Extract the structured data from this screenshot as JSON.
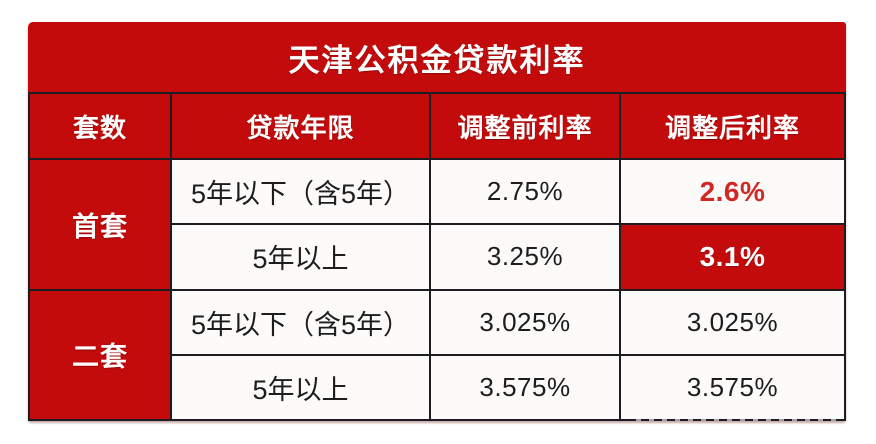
{
  "title": "天津公积金贷款利率",
  "table": {
    "headers": {
      "units": "套数",
      "term": "贷款年限",
      "before": "调整前利率",
      "after": "调整后利率"
    },
    "groups": [
      {
        "label": "首套"
      },
      {
        "label": "二套"
      }
    ],
    "rows": [
      {
        "group": "首套",
        "term": "5年以下（含5年）",
        "before": "2.75%",
        "after": "2.6%"
      },
      {
        "group": "首套",
        "term": "5年以上",
        "before": "3.25%",
        "after": "3.1%"
      },
      {
        "group": "二套",
        "term": "5年以下（含5年）",
        "before": "3.025%",
        "after": "3.025%"
      },
      {
        "group": "二套",
        "term": "5年以上",
        "before": "3.575%",
        "after": "3.575%"
      }
    ]
  },
  "colors": {
    "panel_red": "#c30b0b",
    "highlight_red": "#d22823",
    "grid_black": "#1c1c22",
    "cell_white": "#fcfbfa"
  },
  "chart_data": {
    "type": "table",
    "title": "天津公积金贷款利率",
    "columns": [
      "套数",
      "贷款年限",
      "调整前利率",
      "调整后利率"
    ],
    "rows": [
      [
        "首套",
        "5年以下（含5年）",
        "2.75%",
        "2.6%"
      ],
      [
        "首套",
        "5年以上",
        "3.25%",
        "3.1%"
      ],
      [
        "二套",
        "5年以下（含5年）",
        "3.025%",
        "3.025%"
      ],
      [
        "二套",
        "5年以上",
        "3.575%",
        "3.575%"
      ]
    ],
    "notes": {
      "highlight_cells": [
        "row0 调整后利率 red bold text",
        "row1 调整后利率 white bold on red background"
      ]
    }
  }
}
